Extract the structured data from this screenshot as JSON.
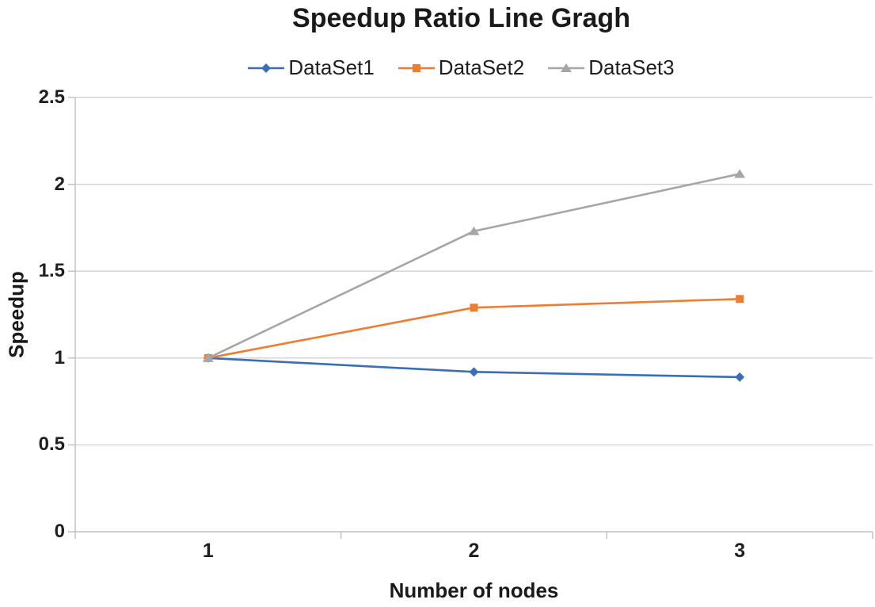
{
  "chart_data": {
    "type": "line",
    "title": "Speedup Ratio Line Gragh",
    "xlabel": "Number of nodes",
    "ylabel": "Speedup",
    "categories": [
      "1",
      "2",
      "3"
    ],
    "series": [
      {
        "name": "DataSet1",
        "marker": "diamond",
        "color": "#3a6fb7",
        "values": [
          1.0,
          0.92,
          0.89
        ]
      },
      {
        "name": "DataSet2",
        "marker": "square",
        "color": "#ed7d31",
        "values": [
          1.0,
          1.29,
          1.34
        ]
      },
      {
        "name": "DataSet3",
        "marker": "triangle",
        "color": "#a6a6a6",
        "values": [
          1.0,
          1.73,
          2.06
        ]
      }
    ],
    "ylim": [
      0,
      2.5
    ],
    "ytick_step": 0.5,
    "yticks": [
      "0",
      "0.5",
      "1",
      "1.5",
      "2",
      "2.5"
    ],
    "grid": "horizontal",
    "legend_position": "top",
    "colors": {
      "gridline": "#d2d2d2",
      "axis": "#bfbfbf",
      "text": "#1f1f1f",
      "background": "#ffffff"
    }
  }
}
